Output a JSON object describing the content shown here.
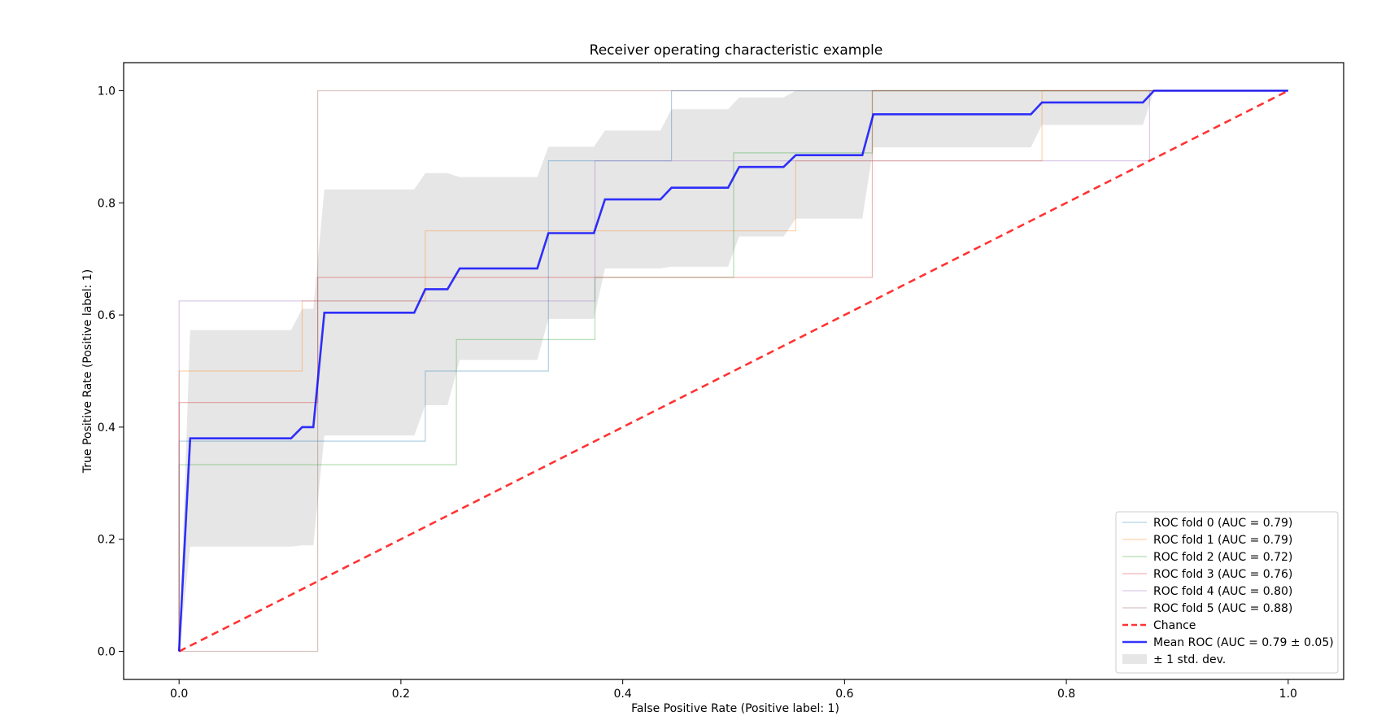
{
  "chart_data": {
    "type": "line",
    "title": "Receiver operating characteristic example",
    "xlabel": "False Positive Rate (Positive label: 1)",
    "ylabel": "True Positive Rate (Positive label: 1)",
    "xlim": [
      -0.05,
      1.05
    ],
    "ylim": [
      -0.05,
      1.05
    ],
    "xticks": [
      0.0,
      0.2,
      0.4,
      0.6,
      0.8,
      1.0
    ],
    "yticks": [
      0.0,
      0.2,
      0.4,
      0.6,
      0.8,
      1.0
    ],
    "xtick_labels": [
      "0.0",
      "0.2",
      "0.4",
      "0.6",
      "0.8",
      "1.0"
    ],
    "ytick_labels": [
      "0.0",
      "0.2",
      "0.4",
      "0.6",
      "0.8",
      "1.0"
    ],
    "grid": false,
    "legend_position": "lower-right",
    "series": [
      {
        "name": "ROC fold 0 (AUC = 0.79)",
        "color": "#1f77b4",
        "style": "thin",
        "x": [
          0,
          0,
          0.222,
          0.222,
          0.333,
          0.333,
          0.444,
          0.444,
          1.0
        ],
        "y": [
          0,
          0.375,
          0.375,
          0.5,
          0.5,
          0.875,
          0.875,
          1.0,
          1.0
        ]
      },
      {
        "name": "ROC fold 1 (AUC = 0.79)",
        "color": "#ff7f0e",
        "style": "thin",
        "x": [
          0,
          0,
          0.111,
          0.111,
          0.222,
          0.222,
          0.556,
          0.556,
          0.778,
          0.778,
          1.0
        ],
        "y": [
          0,
          0.5,
          0.5,
          0.625,
          0.625,
          0.75,
          0.75,
          0.875,
          0.875,
          1.0,
          1.0
        ]
      },
      {
        "name": "ROC fold 2 (AUC = 0.72)",
        "color": "#2ca02c",
        "style": "thin",
        "x": [
          0,
          0,
          0.25,
          0.25,
          0.375,
          0.375,
          0.5,
          0.5,
          0.625,
          0.625,
          1.0
        ],
        "y": [
          0,
          0.333,
          0.333,
          0.556,
          0.556,
          0.667,
          0.667,
          0.889,
          0.889,
          1.0,
          1.0
        ]
      },
      {
        "name": "ROC fold 3 (AUC = 0.76)",
        "color": "#d62728",
        "style": "thin",
        "x": [
          0,
          0,
          0.125,
          0.125,
          0.625,
          0.625,
          1.0
        ],
        "y": [
          0,
          0.444,
          0.444,
          0.667,
          0.667,
          1.0,
          1.0
        ]
      },
      {
        "name": "ROC fold 4 (AUC = 0.80)",
        "color": "#9467bd",
        "style": "thin",
        "x": [
          0,
          0,
          0.375,
          0.375,
          0.875,
          0.875,
          1.0
        ],
        "y": [
          0,
          0.625,
          0.625,
          0.875,
          0.875,
          1.0,
          1.0
        ]
      },
      {
        "name": "ROC fold 5 (AUC = 0.88)",
        "color": "#8c564b",
        "style": "thin",
        "x": [
          0,
          0.125,
          0.125,
          1.0
        ],
        "y": [
          0,
          0,
          1.0,
          1.0
        ]
      },
      {
        "name": "Chance",
        "color": "#ff0000",
        "style": "dashed",
        "x": [
          0,
          1.0
        ],
        "y": [
          0,
          1.0
        ]
      },
      {
        "name": "Mean ROC (AUC = 0.79 ± 0.05)",
        "color": "#0000ff",
        "style": "bold",
        "x": [
          0,
          0.01,
          0.101,
          0.111,
          0.121,
          0.131,
          0.212,
          0.222,
          0.242,
          0.253,
          0.323,
          0.333,
          0.374,
          0.384,
          0.434,
          0.444,
          0.495,
          0.505,
          0.545,
          0.556,
          0.616,
          0.626,
          0.768,
          0.778,
          0.869,
          0.879,
          1.0
        ],
        "y": [
          0,
          0.38,
          0.38,
          0.4,
          0.4,
          0.604,
          0.604,
          0.646,
          0.646,
          0.683,
          0.683,
          0.746,
          0.746,
          0.806,
          0.806,
          0.827,
          0.827,
          0.864,
          0.864,
          0.885,
          0.885,
          0.958,
          0.958,
          0.979,
          0.979,
          1.0,
          1.0
        ]
      }
    ],
    "std_band": {
      "name": "± 1 std. dev.",
      "color": "#808080",
      "x": [
        0,
        0.01,
        0.101,
        0.111,
        0.121,
        0.131,
        0.212,
        0.222,
        0.242,
        0.253,
        0.323,
        0.333,
        0.374,
        0.384,
        0.434,
        0.444,
        0.495,
        0.505,
        0.545,
        0.556,
        0.616,
        0.626,
        0.768,
        0.778,
        0.869,
        0.879,
        1.0
      ],
      "upper": [
        0,
        0.573,
        0.573,
        0.611,
        0.611,
        0.824,
        0.824,
        0.853,
        0.853,
        0.846,
        0.846,
        0.9,
        0.9,
        0.929,
        0.929,
        0.967,
        0.967,
        0.988,
        0.988,
        1.0,
        1.0,
        1.0,
        1.0,
        1.0,
        1.0,
        1.0,
        1.0
      ],
      "lower": [
        0,
        0.187,
        0.187,
        0.189,
        0.189,
        0.385,
        0.385,
        0.439,
        0.439,
        0.52,
        0.52,
        0.593,
        0.593,
        0.683,
        0.683,
        0.686,
        0.686,
        0.74,
        0.74,
        0.772,
        0.772,
        0.899,
        0.899,
        0.939,
        0.939,
        1.0,
        1.0
      ]
    }
  }
}
